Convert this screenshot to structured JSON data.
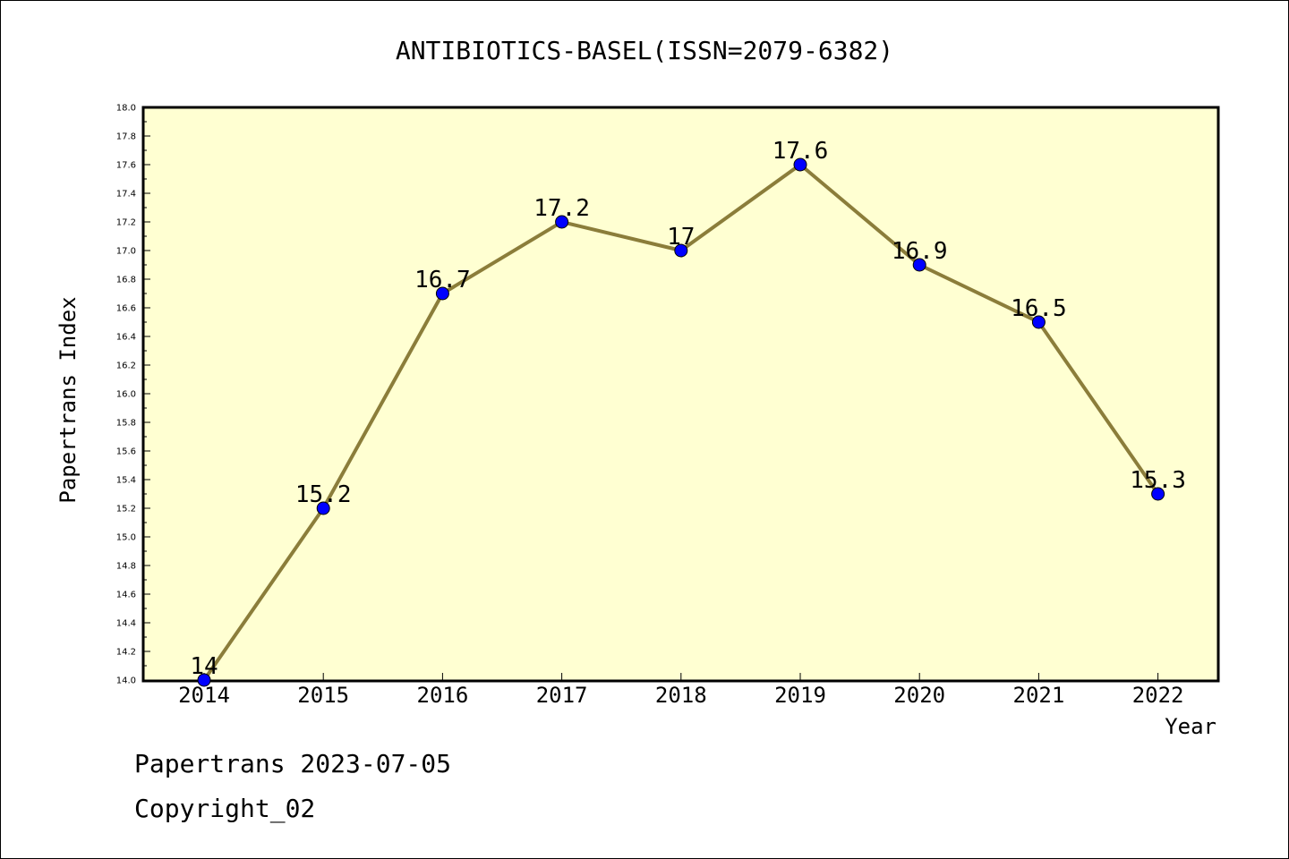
{
  "chart_data": {
    "type": "line",
    "title": "ANTIBIOTICS-BASEL(ISSN=2079-6382)",
    "xlabel": "Year",
    "ylabel": "Papertrans Index",
    "categories": [
      "2014",
      "2015",
      "2016",
      "2017",
      "2018",
      "2019",
      "2020",
      "2021",
      "2022"
    ],
    "values": [
      14,
      15.2,
      16.7,
      17.2,
      17,
      17.6,
      16.9,
      16.5,
      15.3
    ],
    "data_labels": [
      "14",
      "15.2",
      "16.7",
      "17.2",
      "17",
      "17.6",
      "16.9",
      "16.5",
      "15.3"
    ],
    "ylim": [
      14.0,
      18.0
    ],
    "yticks": [
      "14.0",
      "14.2",
      "14.4",
      "14.6",
      "14.8",
      "15.0",
      "15.2",
      "15.4",
      "15.6",
      "15.8",
      "16.0",
      "16.2",
      "16.4",
      "16.6",
      "16.8",
      "17.0",
      "17.2",
      "17.4",
      "17.6",
      "17.8",
      "18.0"
    ],
    "grid": false,
    "colors": {
      "plot_background": "#ffffd2",
      "line": "#8b7d3a",
      "marker": "#0000ff"
    }
  },
  "footer": {
    "line1": "Papertrans 2023-07-05",
    "line2": "Copyright_02"
  }
}
